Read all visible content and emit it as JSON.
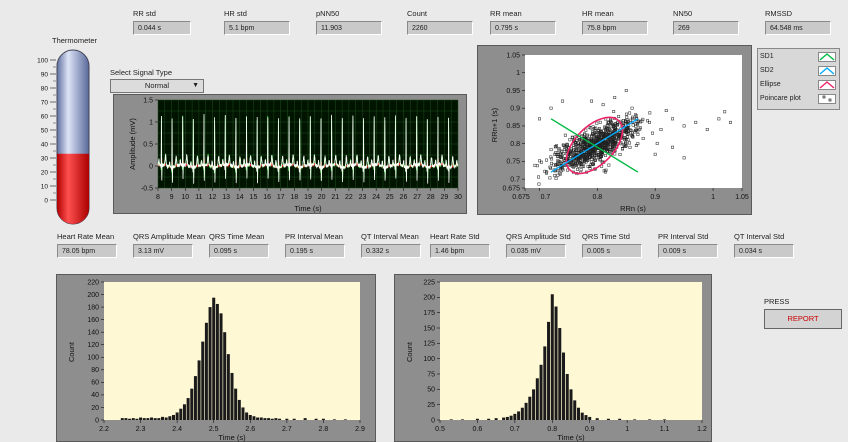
{
  "top_stats": [
    {
      "label": "RR std",
      "value": "0.044 s"
    },
    {
      "label": "HR std",
      "value": "5.1 bpm"
    },
    {
      "label": "pNN50",
      "value": "11.903"
    },
    {
      "label": "Count",
      "value": "2260"
    },
    {
      "label": "RR mean",
      "value": "0.795 s"
    },
    {
      "label": "HR mean",
      "value": "75.8 bpm"
    },
    {
      "label": "NN50",
      "value": "269"
    },
    {
      "label": "RMSSD",
      "value": "64.548 ms"
    }
  ],
  "thermometer": {
    "label": "Thermometer",
    "ticks": [
      "100",
      "90",
      "80",
      "70",
      "60",
      "50",
      "40",
      "30",
      "20",
      "10",
      "0"
    ],
    "level_percent": 33,
    "fill_color": "#ff0000"
  },
  "signal_select": {
    "label": "Select Signal Type",
    "value": "Normal"
  },
  "ecg_chart": {
    "ylabel": "Amplitude (mV)",
    "xlabel": "Time (s)",
    "yticks": [
      "1.5",
      "1",
      "0.5",
      "0",
      "-0.5"
    ],
    "xticks": [
      "8",
      "9",
      "10",
      "11",
      "12",
      "13",
      "14",
      "15",
      "16",
      "17",
      "18",
      "19",
      "20",
      "21",
      "22",
      "23",
      "24",
      "25",
      "26",
      "27",
      "28",
      "29",
      "30"
    ],
    "colors": {
      "background": "#001400",
      "grid": "#1f4d1f",
      "trace_white": "#ffffff",
      "trace_green": "#55ff55",
      "trace_red": "#ff3333"
    }
  },
  "poincare_legend": [
    {
      "label": "SD1",
      "color": "#00bb44",
      "icon": "line-icon"
    },
    {
      "label": "SD2",
      "color": "#00aaff",
      "icon": "line-icon"
    },
    {
      "label": "Ellipse",
      "color": "#ee2266",
      "icon": "line-icon"
    },
    {
      "label": "Poincare plot",
      "color": "#000000",
      "icon": "scatter-points-icon"
    }
  ],
  "bottom_stats": [
    {
      "label": "Heart Rate Mean",
      "value": "78.05 bpm"
    },
    {
      "label": "QRS Amplitude Mean",
      "value": "3.13 mV"
    },
    {
      "label": "QRS Time Mean",
      "value": "0.095 s"
    },
    {
      "label": "PR Interval Mean",
      "value": "0.195 s"
    },
    {
      "label": "QT Interval Mean",
      "value": "0.332 s"
    },
    {
      "label": "Heart Rate Std",
      "value": "1.46 bpm"
    },
    {
      "label": "QRS Amplitude Std",
      "value": "0.035 mV"
    },
    {
      "label": "QRS Time Std",
      "value": "0.005 s"
    },
    {
      "label": "PR Interval Std",
      "value": "0.009 s"
    },
    {
      "label": "QT Interval Std",
      "value": "0.034 s"
    }
  ],
  "press": {
    "label": "PRESS",
    "button": "REPORT"
  },
  "chart_data": [
    {
      "type": "scatter",
      "xlabel": "RRn (s)",
      "ylabel": "RRn+1 (s)",
      "xlim": [
        0.675,
        1.05
      ],
      "ylim": [
        0.675,
        1.05
      ],
      "xticks": [
        "0.675",
        "0.7",
        "0.8",
        "0.9",
        "1",
        "1.05"
      ],
      "yticks": [
        "1.05",
        "1",
        "0.95",
        "0.9",
        "0.85",
        "0.8",
        "0.75",
        "0.7",
        "0.675"
      ],
      "grid": false,
      "cluster": {
        "center": [
          0.795,
          0.795
        ],
        "sd1": 0.046,
        "sd2": 0.042
      },
      "ellipse": {
        "center": [
          0.795,
          0.795
        ],
        "angle_deg": 45,
        "semi_major": 0.06,
        "semi_minor": 0.033
      },
      "outliers": [
        {
          "x": 0.89,
          "y": 0.86
        },
        {
          "x": 0.91,
          "y": 0.84
        },
        {
          "x": 0.93,
          "y": 0.87
        },
        {
          "x": 0.95,
          "y": 0.85
        },
        {
          "x": 0.97,
          "y": 0.86
        },
        {
          "x": 0.99,
          "y": 0.84
        },
        {
          "x": 1.01,
          "y": 0.87
        },
        {
          "x": 1.03,
          "y": 0.86
        },
        {
          "x": 1.02,
          "y": 0.89
        },
        {
          "x": 0.87,
          "y": 0.8
        },
        {
          "x": 0.9,
          "y": 0.77
        },
        {
          "x": 0.93,
          "y": 0.79
        },
        {
          "x": 0.95,
          "y": 0.76
        },
        {
          "x": 0.83,
          "y": 0.93
        },
        {
          "x": 0.85,
          "y": 0.95
        },
        {
          "x": 0.81,
          "y": 0.91
        },
        {
          "x": 0.79,
          "y": 0.92
        },
        {
          "x": 0.86,
          "y": 0.9
        },
        {
          "x": 0.72,
          "y": 0.9
        },
        {
          "x": 0.74,
          "y": 0.92
        },
        {
          "x": 0.7,
          "y": 0.87
        }
      ]
    },
    {
      "type": "bar",
      "xlabel": "Time (s)",
      "ylabel": "Count",
      "xlim": [
        2.2,
        2.9
      ],
      "ylim": [
        0,
        220
      ],
      "xticks": [
        "2.2",
        "2.3",
        "2.4",
        "2.5",
        "2.6",
        "2.7",
        "2.8",
        "2.9"
      ],
      "yticks": [
        "220",
        "200",
        "180",
        "160",
        "140",
        "120",
        "100",
        "80",
        "60",
        "40",
        "20",
        "0"
      ],
      "bins": [
        [
          2.25,
          3
        ],
        [
          2.26,
          3
        ],
        [
          2.27,
          2
        ],
        [
          2.28,
          3
        ],
        [
          2.29,
          2
        ],
        [
          2.3,
          4
        ],
        [
          2.31,
          3
        ],
        [
          2.32,
          3
        ],
        [
          2.33,
          4
        ],
        [
          2.34,
          3
        ],
        [
          2.35,
          3
        ],
        [
          2.36,
          5
        ],
        [
          2.37,
          4
        ],
        [
          2.38,
          6
        ],
        [
          2.39,
          8
        ],
        [
          2.4,
          12
        ],
        [
          2.41,
          18
        ],
        [
          2.42,
          25
        ],
        [
          2.43,
          35
        ],
        [
          2.44,
          50
        ],
        [
          2.45,
          70
        ],
        [
          2.46,
          95
        ],
        [
          2.47,
          125
        ],
        [
          2.48,
          155
        ],
        [
          2.49,
          180
        ],
        [
          2.5,
          195
        ],
        [
          2.51,
          185
        ],
        [
          2.52,
          170
        ],
        [
          2.53,
          140
        ],
        [
          2.54,
          105
        ],
        [
          2.55,
          75
        ],
        [
          2.56,
          50
        ],
        [
          2.57,
          32
        ],
        [
          2.58,
          20
        ],
        [
          2.59,
          12
        ],
        [
          2.6,
          8
        ],
        [
          2.61,
          6
        ],
        [
          2.62,
          4
        ],
        [
          2.63,
          4
        ],
        [
          2.64,
          3
        ],
        [
          2.65,
          3
        ],
        [
          2.66,
          2
        ],
        [
          2.67,
          3
        ],
        [
          2.68,
          2
        ],
        [
          2.7,
          2
        ],
        [
          2.72,
          2
        ],
        [
          2.75,
          3
        ],
        [
          2.78,
          2
        ],
        [
          2.8,
          2
        ],
        [
          2.83,
          1
        ],
        [
          2.86,
          1
        ]
      ]
    },
    {
      "type": "bar",
      "xlabel": "Time (s)",
      "ylabel": "Count",
      "xlim": [
        0.5,
        1.2
      ],
      "ylim": [
        0,
        225
      ],
      "xticks": [
        "0.5",
        "0.6",
        "0.7",
        "0.8",
        "0.9",
        "1",
        "1.1",
        "1.2"
      ],
      "yticks": [
        "225",
        "200",
        "175",
        "150",
        "125",
        "100",
        "75",
        "50",
        "25",
        "0"
      ],
      "bins": [
        [
          0.53,
          1
        ],
        [
          0.56,
          1
        ],
        [
          0.6,
          2
        ],
        [
          0.63,
          2
        ],
        [
          0.65,
          3
        ],
        [
          0.67,
          4
        ],
        [
          0.68,
          5
        ],
        [
          0.69,
          7
        ],
        [
          0.7,
          10
        ],
        [
          0.71,
          14
        ],
        [
          0.72,
          20
        ],
        [
          0.73,
          28
        ],
        [
          0.74,
          38
        ],
        [
          0.75,
          50
        ],
        [
          0.76,
          68
        ],
        [
          0.77,
          90
        ],
        [
          0.78,
          120
        ],
        [
          0.79,
          160
        ],
        [
          0.8,
          205
        ],
        [
          0.81,
          185
        ],
        [
          0.82,
          150
        ],
        [
          0.83,
          110
        ],
        [
          0.84,
          75
        ],
        [
          0.85,
          50
        ],
        [
          0.86,
          32
        ],
        [
          0.87,
          20
        ],
        [
          0.88,
          12
        ],
        [
          0.89,
          8
        ],
        [
          0.9,
          5
        ],
        [
          0.92,
          3
        ],
        [
          0.95,
          2
        ],
        [
          0.98,
          2
        ],
        [
          1.02,
          1
        ],
        [
          1.06,
          1
        ],
        [
          1.1,
          1
        ]
      ]
    }
  ]
}
